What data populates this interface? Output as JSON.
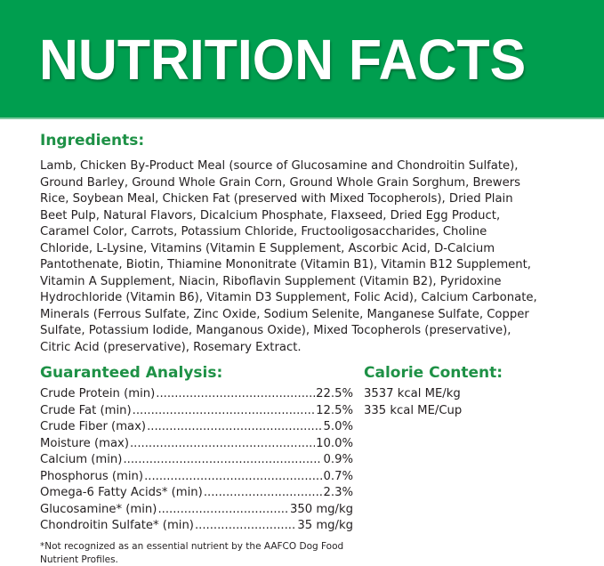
{
  "header": {
    "title": "NUTRITION FACTS",
    "brand_color": "#009e4f"
  },
  "ingredients": {
    "heading": "Ingredients:",
    "lines": [
      "Lamb, Chicken By-Product Meal (source of Glucosamine and Chondroitin Sulfate),",
      "Ground Barley, Ground Whole Grain Corn, Ground Whole Grain Sorghum, Brewers",
      "Rice, Soybean Meal, Chicken Fat (preserved with Mixed Tocopherols), Dried Plain",
      "Beet Pulp, Natural Flavors, Dicalcium Phosphate, Flaxseed, Dried Egg Product,",
      "Caramel Color, Carrots, Potassium Chloride, Fructooligosaccharides, Choline",
      "Chloride, L-Lysine, Vitamins (Vitamin E Supplement, Ascorbic Acid, D-Calcium",
      "Pantothenate, Biotin, Thiamine Mononitrate (Vitamin B1), Vitamin B12 Supplement,",
      "Vitamin A Supplement, Niacin, Riboflavin Supplement (Vitamin B2), Pyridoxine",
      "Hydrochloride (Vitamin B6), Vitamin D3 Supplement, Folic Acid), Calcium Carbonate,",
      "Minerals (Ferrous Sulfate, Zinc Oxide, Sodium Selenite, Manganese Sulfate, Copper",
      "Sulfate, Potassium Iodide, Manganous Oxide), Mixed Tocopherols (preservative),",
      "Citric Acid (preservative), Rosemary Extract."
    ]
  },
  "analysis": {
    "heading": "Guaranteed Analysis:",
    "rows": [
      {
        "label": "Crude Protein (min)",
        "value": "22.5%"
      },
      {
        "label": "Crude Fat (min)",
        "value": "12.5%"
      },
      {
        "label": "Crude Fiber (max)",
        "value": "5.0%"
      },
      {
        "label": "Moisture (max)",
        "value": "10.0%"
      },
      {
        "label": "Calcium (min)",
        "value": "0.9%"
      },
      {
        "label": "Phosphorus (min)",
        "value": "0.7%"
      },
      {
        "label": "Omega-6 Fatty Acids* (min)",
        "value": "2.3%"
      },
      {
        "label": "Glucosamine* (min)",
        "value": "350 mg/kg"
      },
      {
        "label": "Chondroitin Sulfate* (min)",
        "value": "35 mg/kg"
      }
    ],
    "footnote_lines": [
      "*Not recognized as an essential nutrient by the AAFCO Dog Food",
      "Nutrient Profiles."
    ]
  },
  "calorie": {
    "heading": "Calorie Content:",
    "lines": [
      "3537 kcal ME/kg",
      "335 kcal ME/Cup"
    ]
  }
}
